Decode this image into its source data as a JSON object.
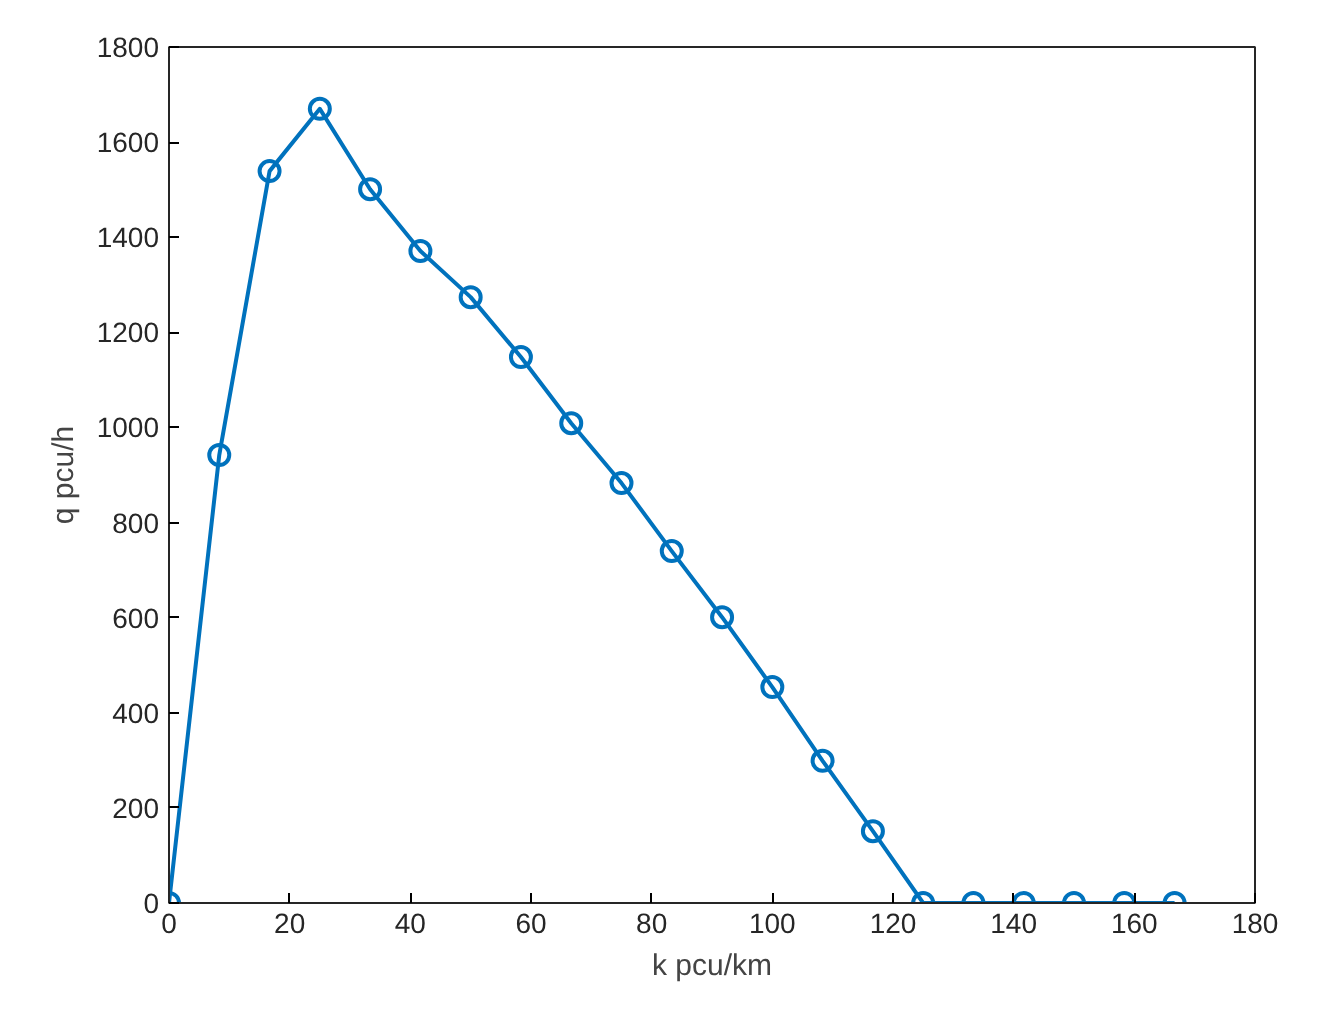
{
  "chart_data": {
    "type": "line",
    "xlabel": "k pcu/km",
    "ylabel": "q pcu/h",
    "x": [
      0,
      8.33,
      16.67,
      25,
      33.33,
      41.67,
      50,
      58.33,
      66.67,
      75,
      83.33,
      91.67,
      100,
      108.33,
      116.67,
      125,
      133.33,
      141.67,
      150,
      158.33,
      166.67
    ],
    "series": [
      {
        "color": "#0072bd",
        "values": [
          0,
          942,
          1539,
          1670,
          1501,
          1371,
          1274,
          1148,
          1009,
          883,
          740,
          601,
          454,
          299,
          151,
          0,
          0,
          0,
          0,
          0,
          0
        ]
      }
    ],
    "xlim": [
      0,
      180
    ],
    "ylim": [
      0,
      1800
    ],
    "xticks": [
      0,
      20,
      40,
      60,
      80,
      100,
      120,
      140,
      160,
      180
    ],
    "yticks": [
      0,
      200,
      400,
      600,
      800,
      1000,
      1200,
      1400,
      1600,
      1800
    ],
    "marker": "circle",
    "line_style": "solid",
    "grid": false
  }
}
